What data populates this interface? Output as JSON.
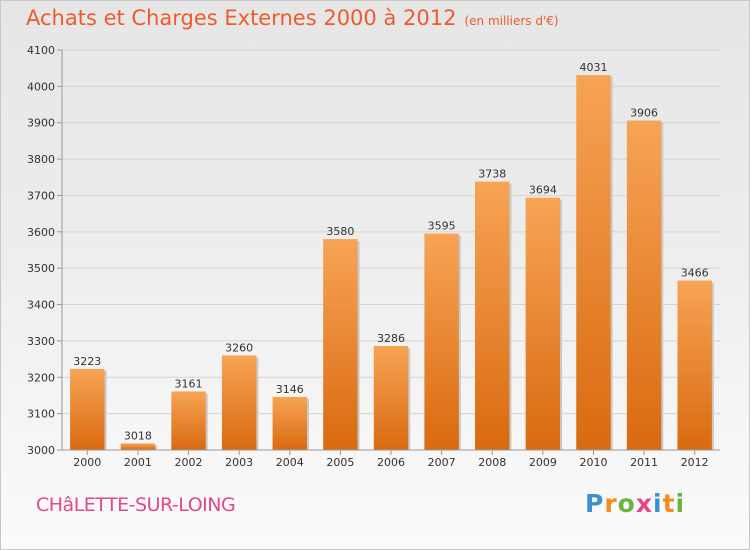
{
  "chart_data": {
    "type": "bar",
    "title": "Achats et Charges Externes 2000 à 2012",
    "subtitle": "(en milliers d'€)",
    "categories": [
      "2000",
      "2001",
      "2002",
      "2003",
      "2004",
      "2005",
      "2006",
      "2007",
      "2008",
      "2009",
      "2010",
      "2011",
      "2012"
    ],
    "values": [
      3223,
      3018,
      3161,
      3260,
      3146,
      3580,
      3286,
      3595,
      3738,
      3694,
      4031,
      3906,
      3466
    ],
    "ylim": [
      3000,
      4100
    ],
    "yticks": [
      3000,
      3100,
      3200,
      3300,
      3400,
      3500,
      3600,
      3700,
      3800,
      3900,
      4000,
      4100
    ],
    "grid": true,
    "bar_color_top": "#f7a455",
    "bar_color_bottom": "#d96a10"
  },
  "footer": {
    "city": "CHâLETTE-SUR-LOING",
    "logo_text": "Proxiti",
    "logo_colors": [
      "#3e8fd0",
      "#f28c1e",
      "#6cb33f",
      "#e2498a",
      "#3e8fd0",
      "#f28c1e",
      "#6cb33f"
    ]
  }
}
